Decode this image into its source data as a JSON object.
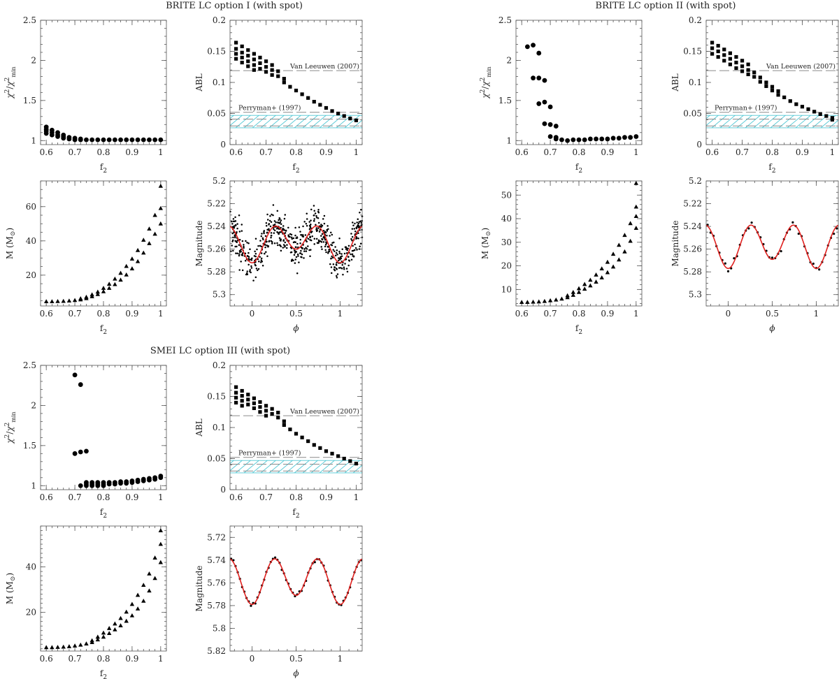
{
  "groups": [
    {
      "title": "BRITE LC option I (with spot)"
    },
    {
      "title": "BRITE LC option II (with spot)"
    },
    {
      "title": "SMEI LC option III (with spot)"
    }
  ],
  "labels": {
    "f2": "f",
    "f2_sub": "2",
    "chi": "χ",
    "chi_sup": "2",
    "chi_sub": "min",
    "abl": "ABL",
    "mass": "M (M",
    "mass_sun": "⊙",
    "mass_close": ")",
    "magnitude": "Magnitude",
    "phi": "ϕ"
  },
  "reference_labels": {
    "vanleeuwen": "Van Leeuwen (2007)",
    "perryman": "Perryman+ (1997)"
  },
  "chart_data": [
    {
      "type": "scatter",
      "group": 0,
      "panel": "chi2",
      "xlabel": "f2",
      "ylabel": "χ2/χ2min",
      "xlim": [
        0.58,
        1.02
      ],
      "ylim": [
        0.95,
        2.5
      ],
      "xticks": [
        "0.6",
        "0.7",
        "0.8",
        "0.9",
        "1"
      ],
      "yticks": [
        "1",
        "1.5",
        "2",
        "2.5"
      ],
      "marker": "circle",
      "x": [
        0.6,
        0.6,
        0.6,
        0.6,
        0.62,
        0.62,
        0.62,
        0.64,
        0.64,
        0.64,
        0.66,
        0.66,
        0.66,
        0.68,
        0.68,
        0.7,
        0.7,
        0.72,
        0.72,
        0.74,
        0.76,
        0.78,
        0.8,
        0.82,
        0.84,
        0.86,
        0.88,
        0.9,
        0.92,
        0.94,
        0.96,
        0.98,
        1.0
      ],
      "y": [
        1.17,
        1.14,
        1.12,
        1.09,
        1.13,
        1.1,
        1.07,
        1.1,
        1.07,
        1.05,
        1.07,
        1.05,
        1.03,
        1.04,
        1.02,
        1.03,
        1.01,
        1.02,
        1.01,
        1.01,
        1.01,
        1.01,
        1.01,
        1.01,
        1.01,
        1.01,
        1.01,
        1.01,
        1.01,
        1.01,
        1.01,
        1.01,
        1.01
      ]
    },
    {
      "type": "scatter",
      "group": 0,
      "panel": "abl",
      "xlabel": "f2",
      "ylabel": "ABL",
      "xlim": [
        0.58,
        1.02
      ],
      "ylim": [
        0,
        0.2
      ],
      "xticks": [
        "0.6",
        "0.7",
        "0.8",
        "0.9",
        "1"
      ],
      "yticks": [
        "0",
        "0.05",
        "0.1",
        "0.15",
        "0.2"
      ],
      "marker": "square",
      "references": [
        {
          "name": "Van Leeuwen (2007)",
          "value": 0.119
        },
        {
          "name": "Perryman+ (1997)",
          "value": 0.052
        }
      ],
      "band": [
        0.027,
        0.047
      ],
      "x": [
        0.6,
        0.6,
        0.6,
        0.6,
        0.62,
        0.62,
        0.62,
        0.62,
        0.64,
        0.64,
        0.64,
        0.64,
        0.66,
        0.66,
        0.66,
        0.66,
        0.68,
        0.68,
        0.68,
        0.7,
        0.7,
        0.7,
        0.72,
        0.72,
        0.72,
        0.74,
        0.74,
        0.76,
        0.76,
        0.78,
        0.8,
        0.82,
        0.84,
        0.86,
        0.88,
        0.9,
        0.92,
        0.94,
        0.96,
        0.98,
        1.0
      ],
      "y": [
        0.164,
        0.154,
        0.146,
        0.138,
        0.158,
        0.148,
        0.14,
        0.132,
        0.152,
        0.143,
        0.134,
        0.126,
        0.146,
        0.137,
        0.128,
        0.12,
        0.14,
        0.131,
        0.122,
        0.134,
        0.125,
        0.117,
        0.128,
        0.12,
        0.112,
        0.118,
        0.11,
        0.106,
        0.1,
        0.093,
        0.087,
        0.081,
        0.075,
        0.069,
        0.064,
        0.059,
        0.054,
        0.05,
        0.046,
        0.042,
        0.039
      ]
    },
    {
      "type": "scatter",
      "group": 0,
      "panel": "mass",
      "xlabel": "f2",
      "ylabel": "M (M⊙)",
      "xlim": [
        0.58,
        1.02
      ],
      "ylim": [
        2,
        75
      ],
      "xticks": [
        "0.6",
        "0.7",
        "0.8",
        "0.9",
        "1"
      ],
      "yticks": [
        "20",
        "40",
        "60"
      ],
      "marker": "triangle",
      "x": [
        0.6,
        0.62,
        0.64,
        0.66,
        0.68,
        0.7,
        0.72,
        0.72,
        0.74,
        0.74,
        0.76,
        0.76,
        0.78,
        0.78,
        0.8,
        0.8,
        0.82,
        0.82,
        0.84,
        0.84,
        0.86,
        0.86,
        0.88,
        0.88,
        0.9,
        0.9,
        0.92,
        0.92,
        0.94,
        0.94,
        0.96,
        0.96,
        0.98,
        0.98,
        1.0,
        1.0,
        1.0
      ],
      "y": [
        4.6,
        4.6,
        4.7,
        4.8,
        5.0,
        5.3,
        5.7,
        6.3,
        6.4,
        7.2,
        7.5,
        8.6,
        8.8,
        10.2,
        10.4,
        12.4,
        12.4,
        14.8,
        14.6,
        17.8,
        17.2,
        21.2,
        20.2,
        25.2,
        23.8,
        29.5,
        28.0,
        34.5,
        33.0,
        40.5,
        38.5,
        47.0,
        44.0,
        55.0,
        50.0,
        59.0,
        72.0
      ]
    },
    {
      "type": "scatter",
      "group": 0,
      "panel": "lightcurve",
      "xlabel": "ϕ",
      "ylabel": "Magnitude",
      "xlim": [
        -0.25,
        1.25
      ],
      "ylim": [
        5.31,
        5.2
      ],
      "yinverted": true,
      "xticks": [
        "0",
        "0.5",
        "1"
      ],
      "yticks": [
        "5.2",
        "5.22",
        "5.24",
        "5.26",
        "5.28",
        "5.3"
      ],
      "model": {
        "name": "model",
        "color": "#e0211f",
        "mean": 5.253,
        "orbital_amplitude": 0.006,
        "ellipsoidal_amplitude": 0.013
      },
      "observations": {
        "points": 600,
        "scatter": 0.0085,
        "seed": 11
      }
    },
    {
      "type": "scatter",
      "group": 1,
      "panel": "chi2",
      "xlabel": "f2",
      "ylabel": "χ2/χ2min",
      "xlim": [
        0.58,
        1.02
      ],
      "ylim": [
        0.95,
        2.5
      ],
      "xticks": [
        "0.6",
        "0.7",
        "0.8",
        "0.9",
        "1"
      ],
      "yticks": [
        "1",
        "1.5",
        "2",
        "2.5"
      ],
      "marker": "circle",
      "x": [
        0.62,
        0.64,
        0.64,
        0.66,
        0.66,
        0.66,
        0.68,
        0.68,
        0.68,
        0.7,
        0.7,
        0.7,
        0.72,
        0.72,
        0.72,
        0.74,
        0.76,
        0.78,
        0.8,
        0.82,
        0.84,
        0.86,
        0.88,
        0.9,
        0.92,
        0.94,
        0.96,
        0.98,
        1.0
      ],
      "y": [
        2.17,
        2.19,
        1.78,
        2.09,
        1.78,
        1.46,
        1.75,
        1.48,
        1.21,
        1.42,
        1.05,
        1.2,
        1.18,
        1.02,
        1.04,
        1.01,
        1.0,
        1.01,
        1.01,
        1.01,
        1.02,
        1.02,
        1.02,
        1.02,
        1.03,
        1.03,
        1.04,
        1.04,
        1.05
      ]
    },
    {
      "type": "scatter",
      "group": 1,
      "panel": "abl",
      "xlabel": "f2",
      "ylabel": "ABL",
      "xlim": [
        0.58,
        1.02
      ],
      "ylim": [
        0,
        0.2
      ],
      "xticks": [
        "0.6",
        "0.7",
        "0.8",
        "0.9",
        "1"
      ],
      "yticks": [
        "0",
        "0.05",
        "0.1",
        "0.15",
        "0.2"
      ],
      "marker": "square",
      "references": [
        {
          "name": "Van Leeuwen (2007)",
          "value": 0.119
        },
        {
          "name": "Perryman+ (1997)",
          "value": 0.052
        }
      ],
      "band": [
        0.027,
        0.047
      ],
      "x": [
        0.6,
        0.6,
        0.6,
        0.62,
        0.62,
        0.62,
        0.64,
        0.64,
        0.64,
        0.66,
        0.66,
        0.66,
        0.68,
        0.68,
        0.68,
        0.7,
        0.7,
        0.7,
        0.72,
        0.72,
        0.72,
        0.74,
        0.74,
        0.76,
        0.76,
        0.78,
        0.78,
        0.8,
        0.8,
        0.82,
        0.82,
        0.84,
        0.86,
        0.88,
        0.9,
        0.92,
        0.94,
        0.96,
        0.98,
        1.0,
        1.0
      ],
      "y": [
        0.164,
        0.155,
        0.146,
        0.159,
        0.15,
        0.141,
        0.153,
        0.144,
        0.135,
        0.147,
        0.138,
        0.129,
        0.141,
        0.132,
        0.123,
        0.135,
        0.126,
        0.118,
        0.129,
        0.12,
        0.113,
        0.116,
        0.109,
        0.108,
        0.101,
        0.1,
        0.094,
        0.093,
        0.087,
        0.086,
        0.08,
        0.076,
        0.07,
        0.065,
        0.061,
        0.057,
        0.053,
        0.049,
        0.046,
        0.043,
        0.04
      ]
    },
    {
      "type": "scatter",
      "group": 1,
      "panel": "mass",
      "xlabel": "f2",
      "ylabel": "M (M⊙)",
      "xlim": [
        0.58,
        1.02
      ],
      "ylim": [
        3,
        56
      ],
      "xticks": [
        "0.6",
        "0.7",
        "0.8",
        "0.9",
        "1"
      ],
      "yticks": [
        "10",
        "20",
        "30",
        "40",
        "50"
      ],
      "marker": "triangle",
      "x": [
        0.6,
        0.62,
        0.64,
        0.66,
        0.68,
        0.7,
        0.72,
        0.74,
        0.76,
        0.76,
        0.78,
        0.78,
        0.8,
        0.8,
        0.82,
        0.82,
        0.84,
        0.84,
        0.86,
        0.86,
        0.88,
        0.88,
        0.9,
        0.9,
        0.92,
        0.92,
        0.94,
        0.94,
        0.96,
        0.96,
        0.98,
        0.98,
        1.0,
        1.0,
        1.0,
        1.0
      ],
      "y": [
        4.6,
        4.6,
        4.7,
        4.8,
        5.0,
        5.3,
        5.6,
        6.0,
        6.6,
        7.4,
        7.6,
        8.8,
        8.8,
        10.4,
        10.2,
        12.2,
        11.6,
        14.0,
        13.2,
        16.2,
        15.0,
        18.8,
        17.2,
        21.6,
        19.6,
        25.0,
        22.6,
        28.8,
        26.0,
        33.0,
        30.5,
        38.0,
        36.0,
        41.0,
        45.0,
        55.0
      ]
    },
    {
      "type": "scatter",
      "group": 1,
      "panel": "lightcurve",
      "xlabel": "ϕ",
      "ylabel": "Magnitude",
      "xlim": [
        -0.25,
        1.25
      ],
      "ylim": [
        5.31,
        5.2
      ],
      "yinverted": true,
      "xticks": [
        "0",
        "0.5",
        "1"
      ],
      "yticks": [
        "5.2",
        "5.22",
        "5.24",
        "5.26",
        "5.28",
        "5.3"
      ],
      "model": {
        "name": "model",
        "color": "#e0211f",
        "mean": 5.256,
        "orbital_amplitude": 0.004,
        "ellipsoidal_amplitude": 0.017
      },
      "observations": {
        "points": 45,
        "scatter": 0.0018,
        "seed": 23
      }
    },
    {
      "type": "scatter",
      "group": 2,
      "panel": "chi2",
      "xlabel": "f2",
      "ylabel": "χ2/χ2min",
      "xlim": [
        0.58,
        1.02
      ],
      "ylim": [
        0.95,
        2.5
      ],
      "xticks": [
        "0.6",
        "0.7",
        "0.8",
        "0.9",
        "1"
      ],
      "yticks": [
        "1",
        "1.5",
        "2",
        "2.5"
      ],
      "marker": "circle",
      "x": [
        0.7,
        0.7,
        0.72,
        0.72,
        0.72,
        0.74,
        0.74,
        0.74,
        0.74,
        0.76,
        0.76,
        0.76,
        0.78,
        0.78,
        0.78,
        0.8,
        0.8,
        0.8,
        0.82,
        0.82,
        0.84,
        0.84,
        0.86,
        0.86,
        0.88,
        0.88,
        0.9,
        0.9,
        0.92,
        0.92,
        0.94,
        0.94,
        0.96,
        0.96,
        0.98,
        0.98,
        1.0,
        1.0
      ],
      "y": [
        2.38,
        1.4,
        2.26,
        1.42,
        1.0,
        1.43,
        1.04,
        1.02,
        1.0,
        1.04,
        1.02,
        1.0,
        1.04,
        1.02,
        1.0,
        1.04,
        1.02,
        1.0,
        1.04,
        1.02,
        1.04,
        1.02,
        1.05,
        1.03,
        1.05,
        1.03,
        1.06,
        1.04,
        1.07,
        1.05,
        1.08,
        1.06,
        1.09,
        1.07,
        1.1,
        1.08,
        1.12,
        1.1
      ]
    },
    {
      "type": "scatter",
      "group": 2,
      "panel": "abl",
      "xlabel": "f2",
      "ylabel": "ABL",
      "xlim": [
        0.58,
        1.02
      ],
      "ylim": [
        0,
        0.2
      ],
      "xticks": [
        "0.6",
        "0.7",
        "0.8",
        "0.9",
        "1"
      ],
      "yticks": [
        "0",
        "0.05",
        "0.1",
        "0.15",
        "0.2"
      ],
      "marker": "square",
      "references": [
        {
          "name": "Van Leeuwen (2007)",
          "value": 0.119
        },
        {
          "name": "Perryman+ (1997)",
          "value": 0.052
        }
      ],
      "band": [
        0.027,
        0.047
      ],
      "x": [
        0.6,
        0.6,
        0.6,
        0.6,
        0.62,
        0.62,
        0.62,
        0.62,
        0.64,
        0.64,
        0.64,
        0.66,
        0.66,
        0.66,
        0.68,
        0.68,
        0.68,
        0.7,
        0.7,
        0.7,
        0.72,
        0.72,
        0.74,
        0.74,
        0.76,
        0.76,
        0.78,
        0.8,
        0.82,
        0.84,
        0.86,
        0.88,
        0.9,
        0.92,
        0.94,
        0.96,
        0.98,
        1.0
      ],
      "y": [
        0.165,
        0.156,
        0.148,
        0.14,
        0.159,
        0.151,
        0.143,
        0.135,
        0.153,
        0.145,
        0.137,
        0.147,
        0.139,
        0.131,
        0.141,
        0.133,
        0.125,
        0.135,
        0.127,
        0.119,
        0.13,
        0.122,
        0.124,
        0.116,
        0.11,
        0.104,
        0.097,
        0.09,
        0.084,
        0.078,
        0.072,
        0.067,
        0.062,
        0.058,
        0.054,
        0.05,
        0.046,
        0.042
      ]
    },
    {
      "type": "scatter",
      "group": 2,
      "panel": "mass",
      "xlabel": "f2",
      "ylabel": "M (M⊙)",
      "xlim": [
        0.58,
        1.02
      ],
      "ylim": [
        3,
        58
      ],
      "xticks": [
        "0.6",
        "0.7",
        "0.8",
        "0.9",
        "1"
      ],
      "yticks": [
        "20",
        "40"
      ],
      "marker": "triangle",
      "x": [
        0.6,
        0.62,
        0.64,
        0.66,
        0.68,
        0.7,
        0.72,
        0.74,
        0.76,
        0.76,
        0.78,
        0.78,
        0.8,
        0.8,
        0.82,
        0.82,
        0.84,
        0.84,
        0.86,
        0.86,
        0.88,
        0.88,
        0.9,
        0.9,
        0.92,
        0.92,
        0.94,
        0.94,
        0.96,
        0.96,
        0.98,
        0.98,
        1.0,
        1.0,
        1.0
      ],
      "y": [
        4.6,
        4.6,
        4.7,
        4.8,
        5.0,
        5.3,
        5.7,
        6.2,
        6.8,
        7.6,
        8.0,
        9.2,
        9.2,
        11.0,
        10.8,
        13.0,
        12.4,
        15.0,
        14.2,
        17.4,
        16.2,
        20.2,
        18.6,
        23.6,
        21.6,
        27.6,
        25.0,
        32.0,
        29.5,
        37.0,
        35.0,
        44.0,
        42.0,
        50.0,
        56.0
      ]
    },
    {
      "type": "scatter",
      "group": 2,
      "panel": "lightcurve",
      "xlabel": "ϕ",
      "ylabel": "Magnitude",
      "xlim": [
        -0.25,
        1.25
      ],
      "ylim": [
        5.82,
        5.71
      ],
      "yinverted": true,
      "xticks": [
        "0",
        "0.5",
        "1"
      ],
      "yticks": [
        "5.72",
        "5.74",
        "5.76",
        "5.78",
        "5.8",
        "5.82"
      ],
      "model": {
        "name": "model",
        "color": "#e0211f",
        "mean": 5.757,
        "orbital_amplitude": 0.004,
        "ellipsoidal_amplitude": 0.018
      },
      "observations": {
        "points": 60,
        "scatter": 0.0008,
        "seed": 37
      }
    }
  ]
}
